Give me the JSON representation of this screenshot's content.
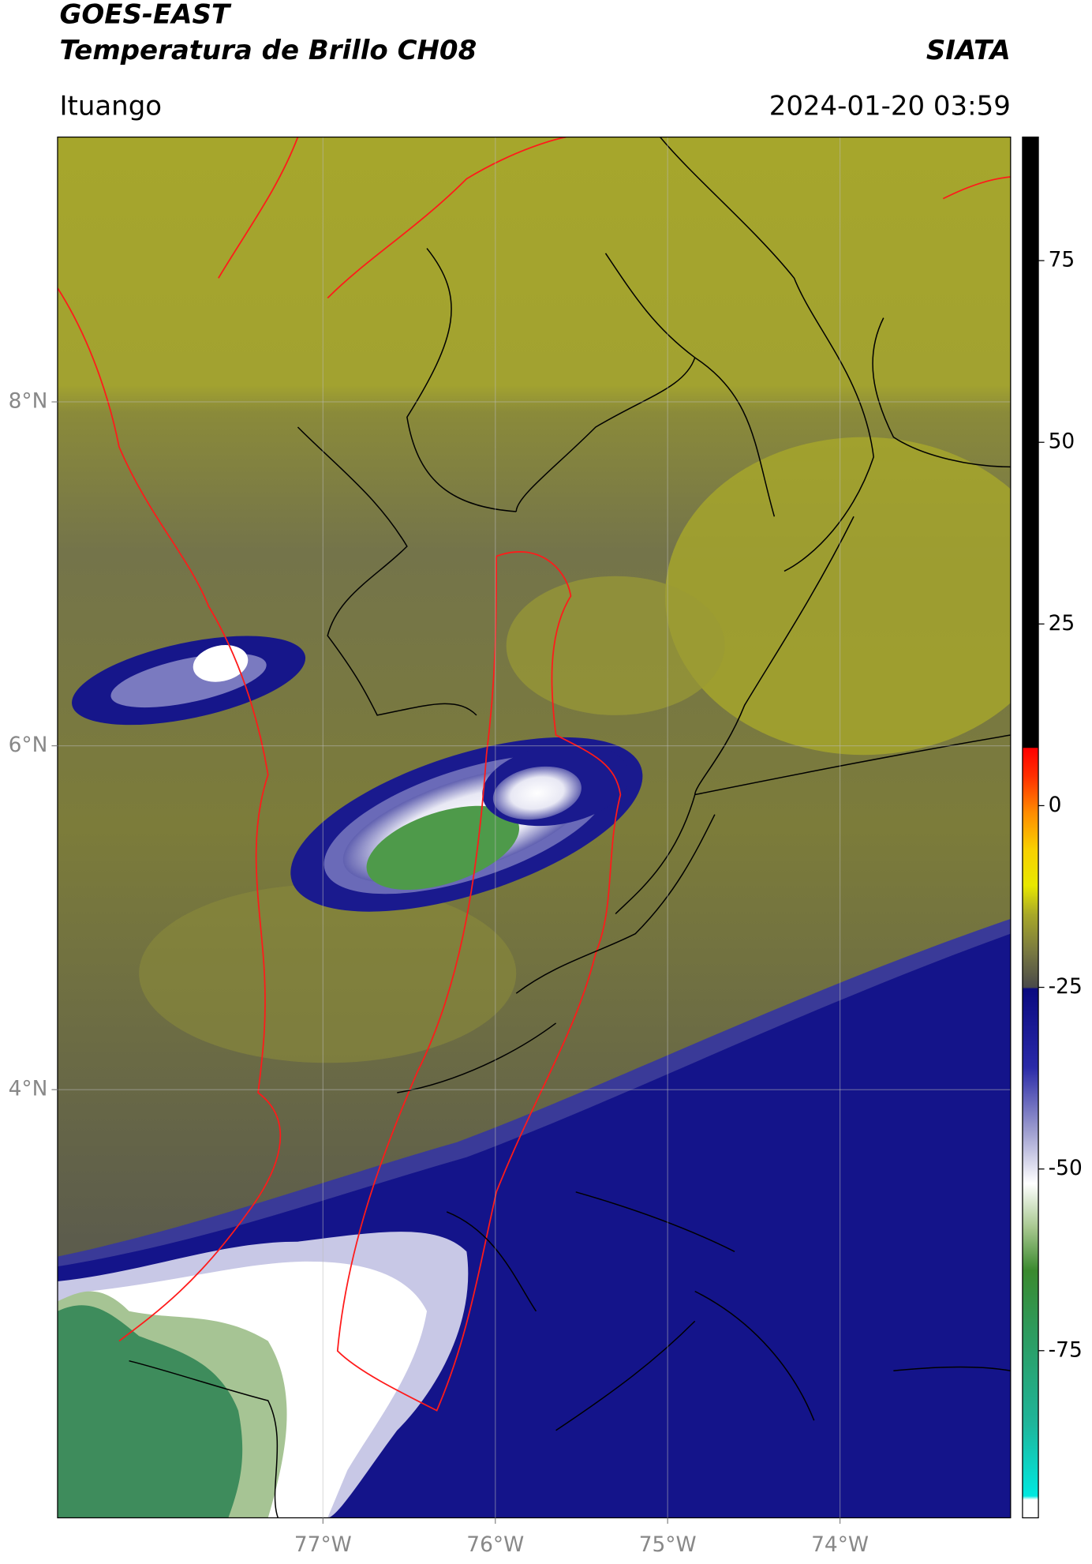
{
  "chart_data": {
    "type": "map",
    "title": "GOES-EAST",
    "subtitle": "Temperatura de Brillo CH08",
    "credit": "SIATA",
    "location": "Ituango",
    "timestamp": "2024-01-20 03:59",
    "xlim": [
      -78.54,
      -73.01
    ],
    "ylim": [
      1.51,
      9.54
    ],
    "xticks": [
      {
        "value": -77,
        "label": "77°W"
      },
      {
        "value": -76,
        "label": "76°W"
      },
      {
        "value": -75,
        "label": "75°W"
      },
      {
        "value": -74,
        "label": "74°W"
      }
    ],
    "yticks": [
      {
        "value": 4,
        "label": "4°N"
      },
      {
        "value": 6,
        "label": "6°N"
      },
      {
        "value": 8,
        "label": "8°N"
      }
    ],
    "grid": true,
    "colorbar": {
      "lim": [
        -98,
        92
      ],
      "ticks": [
        -75,
        -50,
        -25,
        0,
        25,
        50,
        75
      ],
      "colormap": [
        [
          -98,
          "#ffffff"
        ],
        [
          -95.5,
          "#ffffff"
        ],
        [
          -95,
          "#00e8e0"
        ],
        [
          -85,
          "#1fb59a"
        ],
        [
          -72,
          "#2e9a5c"
        ],
        [
          -64,
          "#3a8a2e"
        ],
        [
          -58,
          "#a8c890"
        ],
        [
          -52,
          "#ffffff"
        ],
        [
          -45,
          "#a0a0d0"
        ],
        [
          -36,
          "#2a2aa8"
        ],
        [
          -25.2,
          "#0a0a80"
        ],
        [
          -25,
          "#4a4a4a"
        ],
        [
          -20,
          "#7a7a40"
        ],
        [
          -15,
          "#a8a828"
        ],
        [
          -11,
          "#e8e800"
        ],
        [
          -6,
          "#f8d000"
        ],
        [
          -1,
          "#ff8c00"
        ],
        [
          4,
          "#ff3000"
        ],
        [
          7.9,
          "#ff0000"
        ],
        [
          8,
          "#000000"
        ],
        [
          92,
          "#000000"
        ]
      ]
    }
  }
}
